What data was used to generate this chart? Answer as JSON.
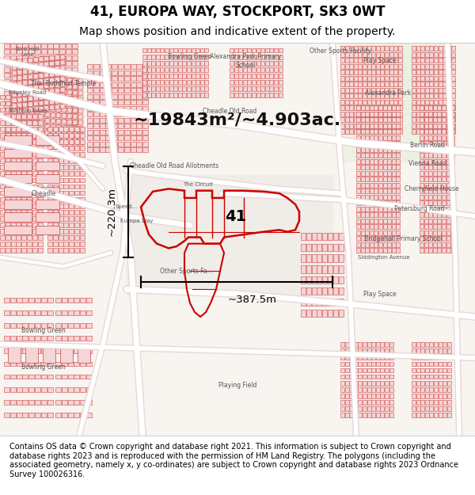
{
  "title_line1": "41, EUROPA WAY, STOCKPORT, SK3 0WT",
  "title_line2": "Map shows position and indicative extent of the property.",
  "annotation_area_text": "~19843m²/~4.903ac.",
  "annotation_width": "~387.5m",
  "annotation_height": "~220.3m",
  "label_41": "41",
  "footer_text": "Contains OS data © Crown copyright and database right 2021. This information is subject to Crown copyright and database rights 2023 and is reproduced with the permission of HM Land Registry. The polygons (including the associated geometry, namely x, y co-ordinates) are subject to Crown copyright and database rights 2023 Ordnance Survey 100026316.",
  "title_fontsize": 12,
  "subtitle_fontsize": 10,
  "annotation_fontsize": 16,
  "footer_fontsize": 7.0,
  "header_bg": "#ffffff",
  "footer_bg": "#ffffff",
  "map_bg": "#f8f4f0",
  "road_color": "#ffffff",
  "building_face": "#f5d5d5",
  "building_edge": "#cc4444",
  "highlight_edge": "#cc0000",
  "label_41_fontsize": 14,
  "label_41_color": "#000000",
  "dim_color": "#000000",
  "text_label_color": "#555555",
  "text_label_size": 5.5
}
